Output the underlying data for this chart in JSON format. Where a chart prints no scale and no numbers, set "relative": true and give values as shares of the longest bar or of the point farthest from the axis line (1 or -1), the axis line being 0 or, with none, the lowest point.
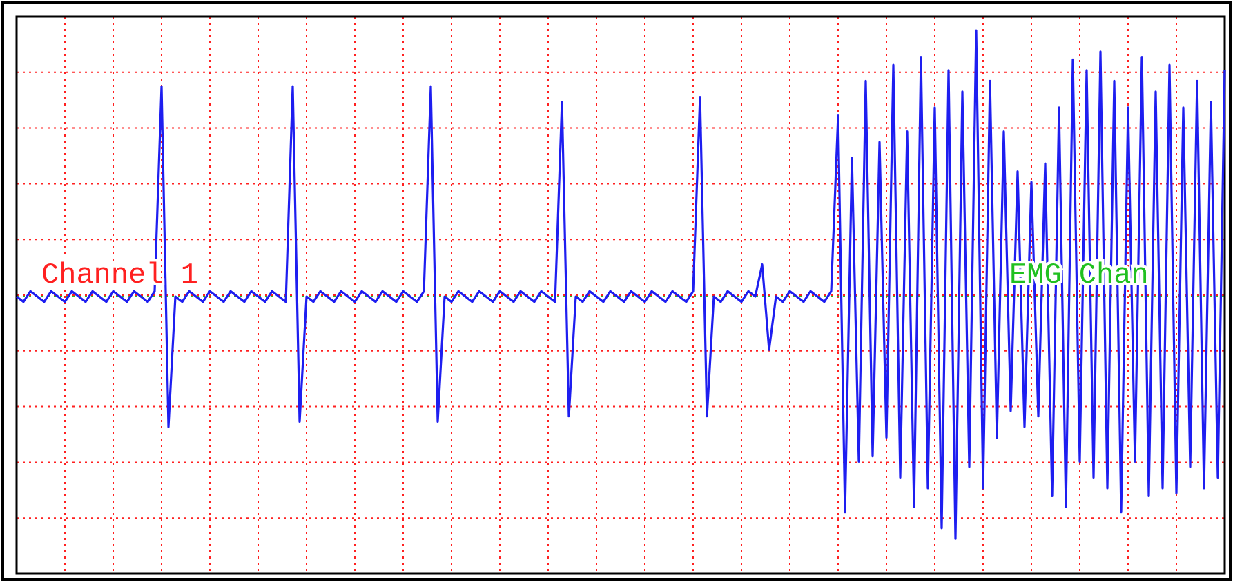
{
  "chart_data": {
    "type": "line",
    "relative": true,
    "grid": true,
    "annotations": [
      "Channel 1",
      "EMG Chan"
    ],
    "ref_lines": [
      {
        "axis": "y",
        "value": 0,
        "color": "#20c020",
        "line_style": "dotted"
      }
    ],
    "categories": [
      null,
      null,
      null,
      null,
      null,
      null,
      null,
      null,
      null,
      null,
      null,
      null,
      null,
      null,
      null,
      null,
      null,
      null,
      null,
      null,
      null,
      null,
      null,
      null,
      null,
      null,
      null,
      null,
      null,
      null,
      null,
      null,
      null,
      null,
      null,
      null,
      null,
      null,
      null,
      null,
      null,
      null,
      null,
      null,
      null,
      null,
      null,
      null,
      null,
      null,
      null,
      null,
      null,
      null,
      null,
      null,
      null,
      null,
      null,
      null,
      null,
      null,
      null,
      null,
      null,
      null,
      null,
      null,
      null,
      null,
      null,
      null,
      null,
      null,
      null,
      null,
      null,
      null,
      null,
      null,
      null,
      null,
      null,
      null,
      null,
      null,
      null,
      null,
      null,
      null,
      null,
      null,
      null,
      null,
      null,
      null,
      null,
      null,
      null,
      null,
      null,
      null,
      null,
      null,
      null,
      null,
      null,
      null,
      null,
      null,
      null,
      null,
      null,
      null,
      null,
      null,
      null,
      null,
      null,
      null,
      null,
      null,
      null,
      null,
      null,
      null,
      null,
      null,
      null,
      null,
      null,
      null,
      null,
      null,
      null,
      null,
      null,
      null,
      null,
      null,
      null,
      null,
      null,
      null,
      null,
      null,
      null,
      null,
      null,
      null,
      null,
      null,
      null,
      null,
      null,
      null,
      null,
      null,
      null,
      null,
      null,
      null,
      null,
      null,
      null,
      null,
      null,
      null,
      null,
      null,
      null,
      null,
      null,
      null,
      null,
      null
    ],
    "series": [
      {
        "color": "#1e1ef0",
        "values": [
          0,
          -0.02,
          0.02,
          0,
          -0.02,
          0.02,
          0,
          -0.02,
          0.02,
          0,
          -0.02,
          0.02,
          0,
          -0.02,
          0.02,
          0,
          -0.02,
          0.02,
          0,
          -0.02,
          0.02,
          0.79,
          -0.49,
          0,
          -0.02,
          0.02,
          0,
          -0.02,
          0.02,
          0,
          -0.02,
          0.02,
          0,
          -0.02,
          0.02,
          0,
          -0.02,
          0.02,
          0,
          -0.02,
          0.79,
          -0.47,
          0,
          -0.02,
          0.02,
          0,
          -0.02,
          0.02,
          0,
          -0.02,
          0.02,
          0,
          -0.02,
          0.02,
          0,
          -0.02,
          0.02,
          0,
          -0.02,
          0.02,
          0.79,
          -0.47,
          0,
          -0.02,
          0.02,
          0,
          -0.02,
          0.02,
          0,
          -0.02,
          0.02,
          0,
          -0.02,
          0.02,
          0,
          -0.02,
          0.02,
          0,
          -0.02,
          0.73,
          -0.45,
          0,
          -0.02,
          0.02,
          0,
          -0.02,
          0.02,
          0,
          -0.02,
          0.02,
          0,
          -0.02,
          0.02,
          0,
          -0.02,
          0.02,
          0,
          -0.02,
          0.02,
          0.75,
          -0.45,
          0,
          -0.02,
          0.02,
          0,
          -0.02,
          0.02,
          0,
          0.12,
          -0.2,
          0,
          -0.02,
          0.02,
          0,
          -0.02,
          0.02,
          0,
          -0.02,
          0.02,
          0.68,
          -0.81,
          0.52,
          -0.62,
          0.81,
          -0.6,
          0.58,
          -0.53,
          0.87,
          -0.68,
          0.62,
          -0.79,
          0.9,
          -0.72,
          0.71,
          -0.87,
          0.85,
          -0.91,
          0.77,
          -0.64,
          1.0,
          -0.72,
          0.81,
          -0.53,
          0.62,
          -0.43,
          0.47,
          -0.49,
          0.43,
          -0.45,
          0.5,
          -0.75,
          0.71,
          -0.79,
          0.89,
          -0.62,
          0.85,
          -0.68,
          0.92,
          -0.72,
          0.81,
          -0.81,
          0.71,
          -0.62,
          0.9,
          -0.75,
          0.77,
          -0.72,
          0.87,
          -0.74,
          0.71,
          -0.64,
          0.81,
          -0.72,
          0.73,
          -0.68,
          0.85
        ]
      }
    ]
  }
}
